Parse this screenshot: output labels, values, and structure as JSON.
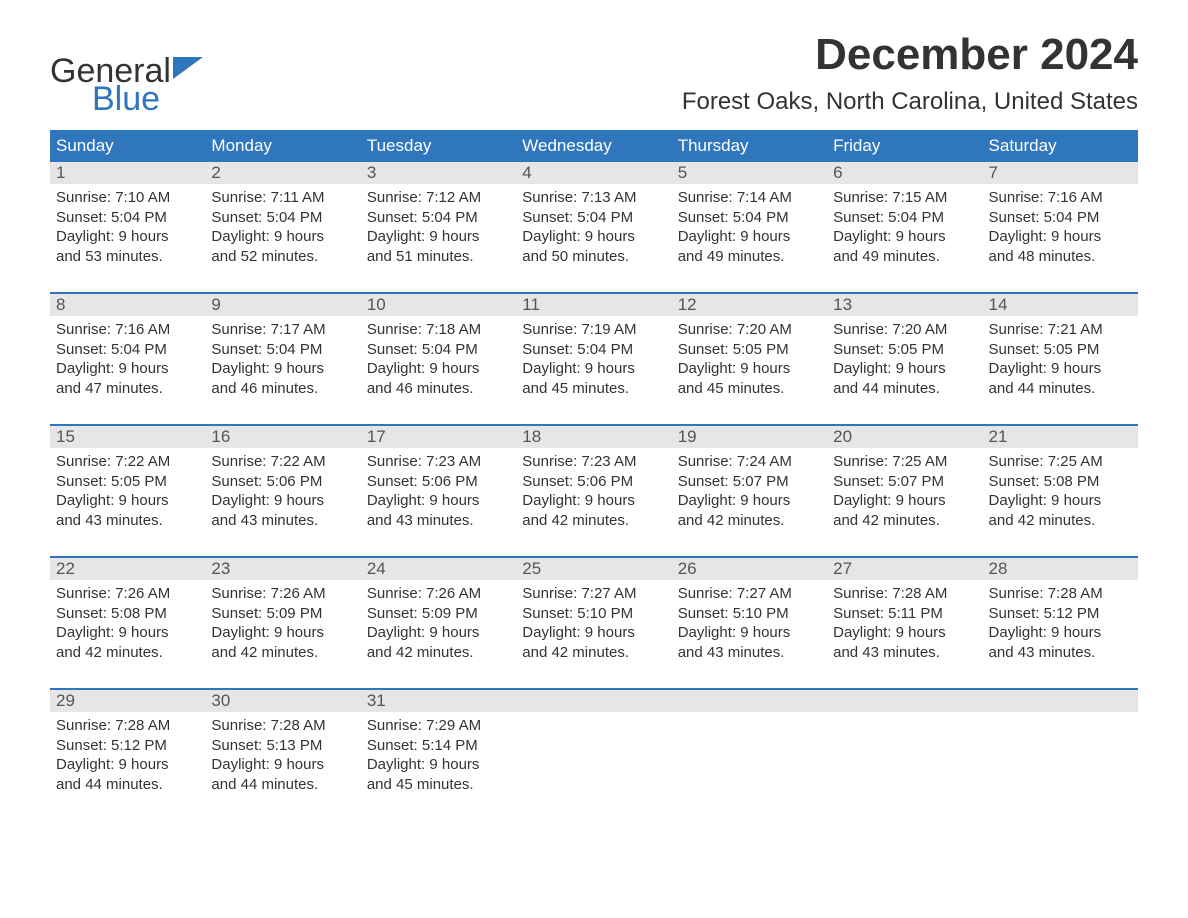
{
  "brand": {
    "general": "General",
    "blue": "Blue",
    "shape_color": "#2f76bd",
    "text_dark": "#333333"
  },
  "title": {
    "month": "December 2024",
    "location": "Forest Oaks, North Carolina, United States"
  },
  "colors": {
    "header_bg": "#2f76bd",
    "header_text": "#ffffff",
    "daynum_bg": "#e6e6e6",
    "daynum_text": "#555555",
    "body_text": "#333333",
    "week_border": "#2f76bd",
    "page_bg": "#ffffff"
  },
  "day_headers": [
    "Sunday",
    "Monday",
    "Tuesday",
    "Wednesday",
    "Thursday",
    "Friday",
    "Saturday"
  ],
  "weeks": [
    [
      {
        "n": "1",
        "sr": "Sunrise: 7:10 AM",
        "ss": "Sunset: 5:04 PM",
        "d1": "Daylight: 9 hours",
        "d2": "and 53 minutes."
      },
      {
        "n": "2",
        "sr": "Sunrise: 7:11 AM",
        "ss": "Sunset: 5:04 PM",
        "d1": "Daylight: 9 hours",
        "d2": "and 52 minutes."
      },
      {
        "n": "3",
        "sr": "Sunrise: 7:12 AM",
        "ss": "Sunset: 5:04 PM",
        "d1": "Daylight: 9 hours",
        "d2": "and 51 minutes."
      },
      {
        "n": "4",
        "sr": "Sunrise: 7:13 AM",
        "ss": "Sunset: 5:04 PM",
        "d1": "Daylight: 9 hours",
        "d2": "and 50 minutes."
      },
      {
        "n": "5",
        "sr": "Sunrise: 7:14 AM",
        "ss": "Sunset: 5:04 PM",
        "d1": "Daylight: 9 hours",
        "d2": "and 49 minutes."
      },
      {
        "n": "6",
        "sr": "Sunrise: 7:15 AM",
        "ss": "Sunset: 5:04 PM",
        "d1": "Daylight: 9 hours",
        "d2": "and 49 minutes."
      },
      {
        "n": "7",
        "sr": "Sunrise: 7:16 AM",
        "ss": "Sunset: 5:04 PM",
        "d1": "Daylight: 9 hours",
        "d2": "and 48 minutes."
      }
    ],
    [
      {
        "n": "8",
        "sr": "Sunrise: 7:16 AM",
        "ss": "Sunset: 5:04 PM",
        "d1": "Daylight: 9 hours",
        "d2": "and 47 minutes."
      },
      {
        "n": "9",
        "sr": "Sunrise: 7:17 AM",
        "ss": "Sunset: 5:04 PM",
        "d1": "Daylight: 9 hours",
        "d2": "and 46 minutes."
      },
      {
        "n": "10",
        "sr": "Sunrise: 7:18 AM",
        "ss": "Sunset: 5:04 PM",
        "d1": "Daylight: 9 hours",
        "d2": "and 46 minutes."
      },
      {
        "n": "11",
        "sr": "Sunrise: 7:19 AM",
        "ss": "Sunset: 5:04 PM",
        "d1": "Daylight: 9 hours",
        "d2": "and 45 minutes."
      },
      {
        "n": "12",
        "sr": "Sunrise: 7:20 AM",
        "ss": "Sunset: 5:05 PM",
        "d1": "Daylight: 9 hours",
        "d2": "and 45 minutes."
      },
      {
        "n": "13",
        "sr": "Sunrise: 7:20 AM",
        "ss": "Sunset: 5:05 PM",
        "d1": "Daylight: 9 hours",
        "d2": "and 44 minutes."
      },
      {
        "n": "14",
        "sr": "Sunrise: 7:21 AM",
        "ss": "Sunset: 5:05 PM",
        "d1": "Daylight: 9 hours",
        "d2": "and 44 minutes."
      }
    ],
    [
      {
        "n": "15",
        "sr": "Sunrise: 7:22 AM",
        "ss": "Sunset: 5:05 PM",
        "d1": "Daylight: 9 hours",
        "d2": "and 43 minutes."
      },
      {
        "n": "16",
        "sr": "Sunrise: 7:22 AM",
        "ss": "Sunset: 5:06 PM",
        "d1": "Daylight: 9 hours",
        "d2": "and 43 minutes."
      },
      {
        "n": "17",
        "sr": "Sunrise: 7:23 AM",
        "ss": "Sunset: 5:06 PM",
        "d1": "Daylight: 9 hours",
        "d2": "and 43 minutes."
      },
      {
        "n": "18",
        "sr": "Sunrise: 7:23 AM",
        "ss": "Sunset: 5:06 PM",
        "d1": "Daylight: 9 hours",
        "d2": "and 42 minutes."
      },
      {
        "n": "19",
        "sr": "Sunrise: 7:24 AM",
        "ss": "Sunset: 5:07 PM",
        "d1": "Daylight: 9 hours",
        "d2": "and 42 minutes."
      },
      {
        "n": "20",
        "sr": "Sunrise: 7:25 AM",
        "ss": "Sunset: 5:07 PM",
        "d1": "Daylight: 9 hours",
        "d2": "and 42 minutes."
      },
      {
        "n": "21",
        "sr": "Sunrise: 7:25 AM",
        "ss": "Sunset: 5:08 PM",
        "d1": "Daylight: 9 hours",
        "d2": "and 42 minutes."
      }
    ],
    [
      {
        "n": "22",
        "sr": "Sunrise: 7:26 AM",
        "ss": "Sunset: 5:08 PM",
        "d1": "Daylight: 9 hours",
        "d2": "and 42 minutes."
      },
      {
        "n": "23",
        "sr": "Sunrise: 7:26 AM",
        "ss": "Sunset: 5:09 PM",
        "d1": "Daylight: 9 hours",
        "d2": "and 42 minutes."
      },
      {
        "n": "24",
        "sr": "Sunrise: 7:26 AM",
        "ss": "Sunset: 5:09 PM",
        "d1": "Daylight: 9 hours",
        "d2": "and 42 minutes."
      },
      {
        "n": "25",
        "sr": "Sunrise: 7:27 AM",
        "ss": "Sunset: 5:10 PM",
        "d1": "Daylight: 9 hours",
        "d2": "and 42 minutes."
      },
      {
        "n": "26",
        "sr": "Sunrise: 7:27 AM",
        "ss": "Sunset: 5:10 PM",
        "d1": "Daylight: 9 hours",
        "d2": "and 43 minutes."
      },
      {
        "n": "27",
        "sr": "Sunrise: 7:28 AM",
        "ss": "Sunset: 5:11 PM",
        "d1": "Daylight: 9 hours",
        "d2": "and 43 minutes."
      },
      {
        "n": "28",
        "sr": "Sunrise: 7:28 AM",
        "ss": "Sunset: 5:12 PM",
        "d1": "Daylight: 9 hours",
        "d2": "and 43 minutes."
      }
    ],
    [
      {
        "n": "29",
        "sr": "Sunrise: 7:28 AM",
        "ss": "Sunset: 5:12 PM",
        "d1": "Daylight: 9 hours",
        "d2": "and 44 minutes."
      },
      {
        "n": "30",
        "sr": "Sunrise: 7:28 AM",
        "ss": "Sunset: 5:13 PM",
        "d1": "Daylight: 9 hours",
        "d2": "and 44 minutes."
      },
      {
        "n": "31",
        "sr": "Sunrise: 7:29 AM",
        "ss": "Sunset: 5:14 PM",
        "d1": "Daylight: 9 hours",
        "d2": "and 45 minutes."
      },
      {
        "empty": true
      },
      {
        "empty": true
      },
      {
        "empty": true
      },
      {
        "empty": true
      }
    ]
  ]
}
